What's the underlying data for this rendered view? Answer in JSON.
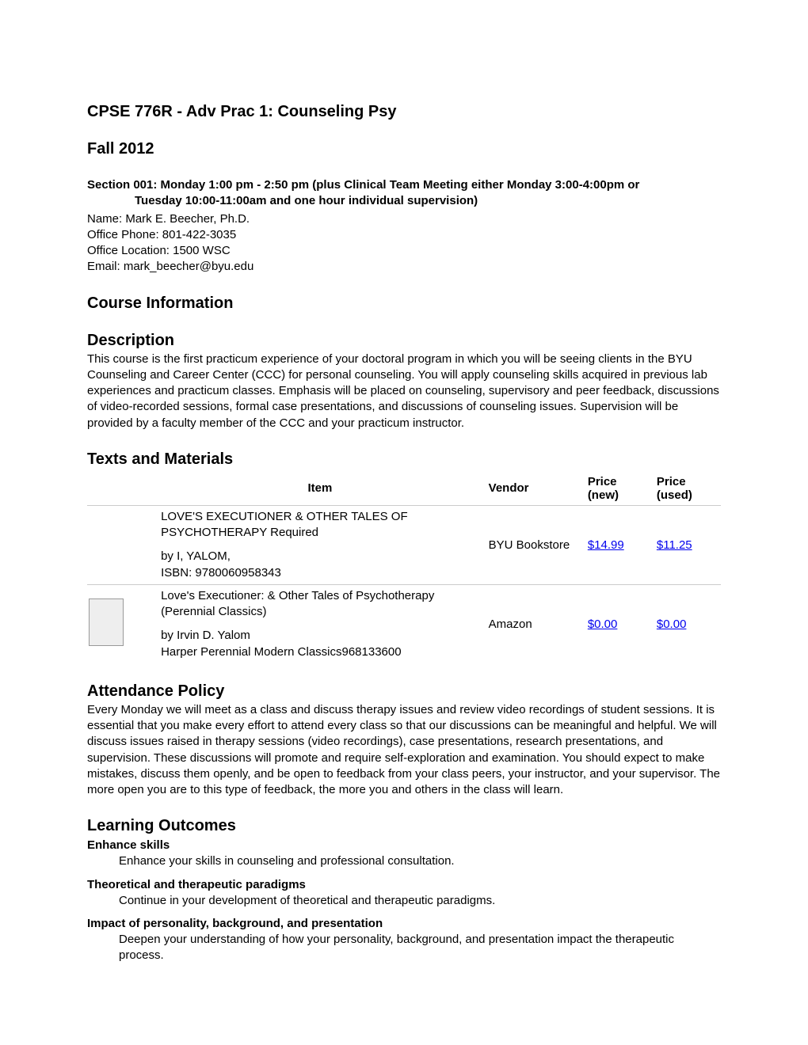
{
  "course_title": "CPSE 776R - Adv Prac 1: Counseling Psy",
  "term": "Fall 2012",
  "section_info": {
    "line1": "Section 001: Monday 1:00 pm - 2:50 pm (plus Clinical Team Meeting either Monday 3:00-4:00pm or",
    "line2": "Tuesday 10:00-11:00am and one hour individual supervision)"
  },
  "instructor": {
    "name_line": "Name: Mark E. Beecher, Ph.D.",
    "phone_line": "Office Phone: 801-422-3035",
    "location_line": "Office Location: 1500 WSC",
    "email_line": "Email: mark_beecher@byu.edu"
  },
  "headings": {
    "course_information": "Course Information",
    "description": "Description",
    "texts_and_materials": "Texts and Materials",
    "attendance_policy": "Attendance Policy",
    "learning_outcomes": "Learning Outcomes"
  },
  "description": "This course is the first practicum experience of your doctoral program in which you will be seeing clients in the BYU Counseling and Career Center (CCC) for personal counseling. You will apply counseling skills acquired in previous lab experiences and practicum classes. Emphasis will be placed on counseling, supervisory and peer feedback, discussions of video-recorded sessions, formal case presentations, and discussions of counseling issues. Supervision will be provided by a faculty member of the CCC and your practicum instructor.",
  "materials_table": {
    "columns": {
      "item": "Item",
      "vendor": "Vendor",
      "price_new": "Price (new)",
      "price_used": "Price (used)"
    },
    "rows": [
      {
        "has_image": false,
        "title": "LOVE'S EXECUTIONER & OTHER TALES OF PSYCHOTHERAPY Required",
        "author": "by I, YALOM,",
        "isbn": "ISBN: 9780060958343",
        "vendor": "BYU Bookstore",
        "price_new": "$14.99",
        "price_used": "$11.25"
      },
      {
        "has_image": true,
        "title": "Love's Executioner: & Other Tales of Psychotherapy (Perennial Classics)",
        "author": "by Irvin D. Yalom",
        "isbn": "Harper Perennial Modern Classics968133600",
        "vendor": "Amazon",
        "price_new": "$0.00",
        "price_used": "$0.00"
      }
    ]
  },
  "attendance_policy": "Every Monday we will meet as a class and discuss therapy issues and review video recordings of student sessions. It is essential that you make every effort to attend every class so that our discussions can be meaningful and helpful. We will discuss issues raised in therapy sessions (video recordings), case presentations, research presentations, and supervision. These discussions will promote and require self-exploration and examination. You should expect to make mistakes, discuss them openly, and be open to feedback from your class peers, your instructor, and your supervisor. The more open you are to this type of feedback, the more you and others in the class will learn.",
  "learning_outcomes": [
    {
      "title": "Enhance skills",
      "body": "Enhance your skills in counseling and professional consultation."
    },
    {
      "title": "Theoretical and therapeutic paradigms",
      "body": "Continue in your development of theoretical and therapeutic paradigms."
    },
    {
      "title": "Impact of personality, background, and presentation",
      "body": "Deepen your understanding of how your personality, background, and presentation impact the therapeutic process."
    }
  ],
  "colors": {
    "link": "#0000ee",
    "border": "#cccccc",
    "text": "#000000",
    "background": "#ffffff"
  }
}
